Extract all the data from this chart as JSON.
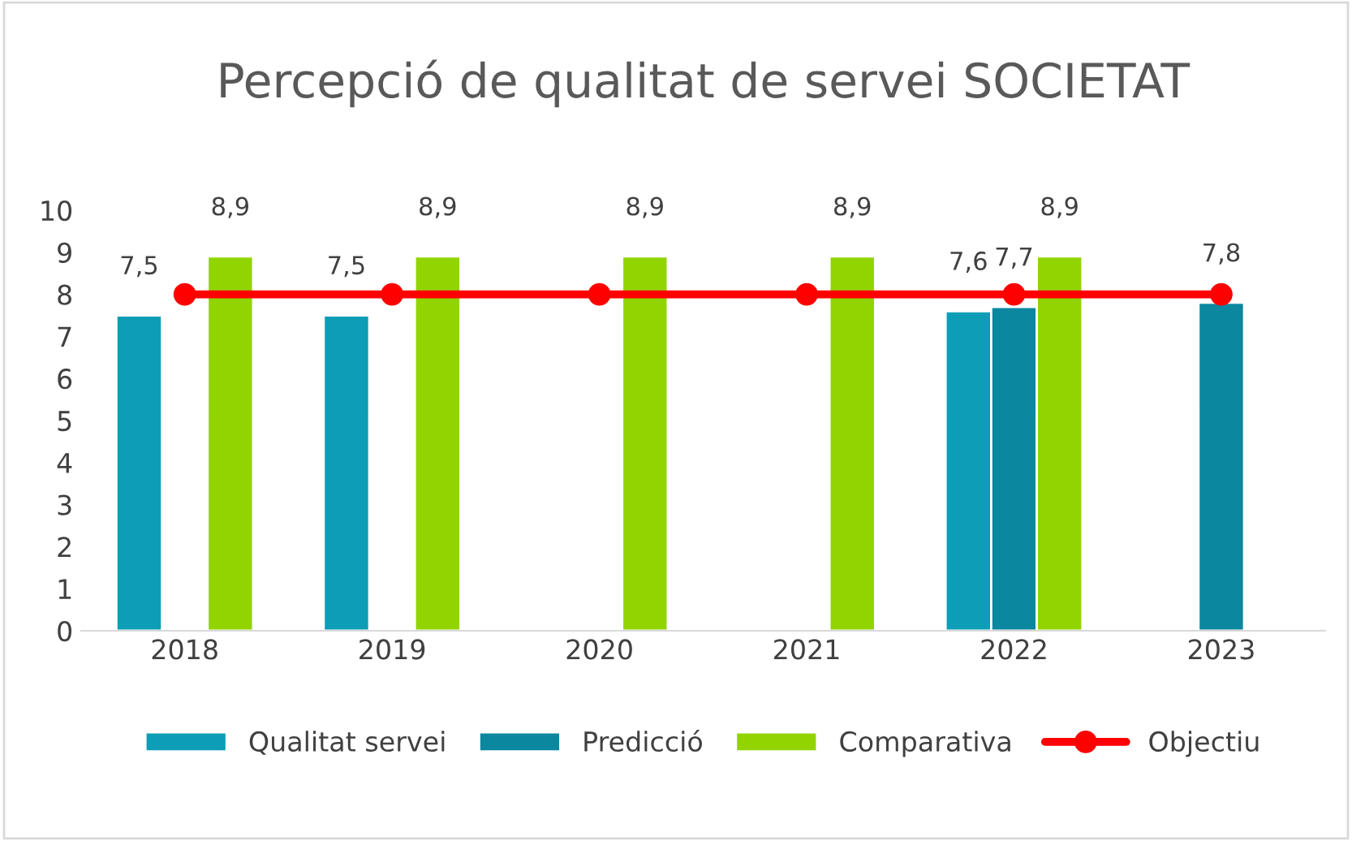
{
  "chart_data": {
    "type": "bar",
    "title": "Percepció de qualitat de servei SOCIETAT",
    "categories": [
      "2018",
      "2019",
      "2020",
      "2021",
      "2022",
      "2023"
    ],
    "series": [
      {
        "name": "Qualitat servei",
        "color": "#0e9db6",
        "values": [
          7.5,
          7.5,
          null,
          null,
          7.6,
          null
        ],
        "value_labels": [
          "7,5",
          "7,5",
          null,
          null,
          "7,6",
          null
        ]
      },
      {
        "name": "Predicció",
        "color": "#0b87a0",
        "values": [
          null,
          null,
          null,
          null,
          7.7,
          7.8
        ],
        "value_labels": [
          null,
          null,
          null,
          null,
          "7,7",
          "7,8"
        ]
      },
      {
        "name": "Comparativa",
        "color": "#92d400",
        "values": [
          8.9,
          8.9,
          8.9,
          8.9,
          8.9,
          null
        ],
        "value_labels": [
          "8,9",
          "8,9",
          "8,9",
          "8,9",
          "8,9",
          null
        ]
      },
      {
        "name": "Objectiu",
        "color": "#ff0000",
        "type": "line",
        "marker": "circle",
        "values": [
          8,
          8,
          8,
          8,
          8,
          8
        ]
      }
    ],
    "ylim": [
      0,
      10
    ],
    "yticks": [
      0,
      1,
      2,
      3,
      4,
      5,
      6,
      7,
      8,
      9,
      10
    ],
    "grid": false,
    "legend": "bottom"
  }
}
